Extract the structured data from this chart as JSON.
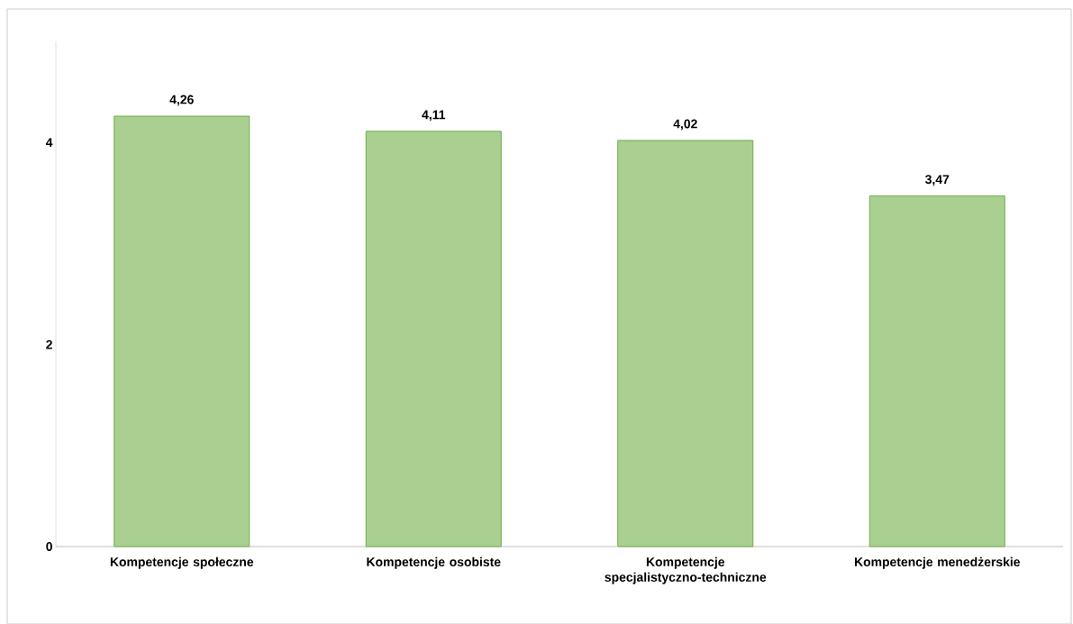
{
  "chart_data": {
    "type": "bar",
    "categories": [
      "Kompetencje społeczne",
      "Kompetencje osobiste",
      "Kompetencje specjalistyczno-techniczne",
      "Kompetencje menedżerskie"
    ],
    "values": [
      4.26,
      4.11,
      4.02,
      3.47
    ],
    "value_labels": [
      "4,26",
      "4,11",
      "4,02",
      "3,47"
    ],
    "color": "#a9cf91",
    "ylim": [
      0,
      5
    ],
    "yticks": [
      0,
      2,
      4
    ]
  }
}
